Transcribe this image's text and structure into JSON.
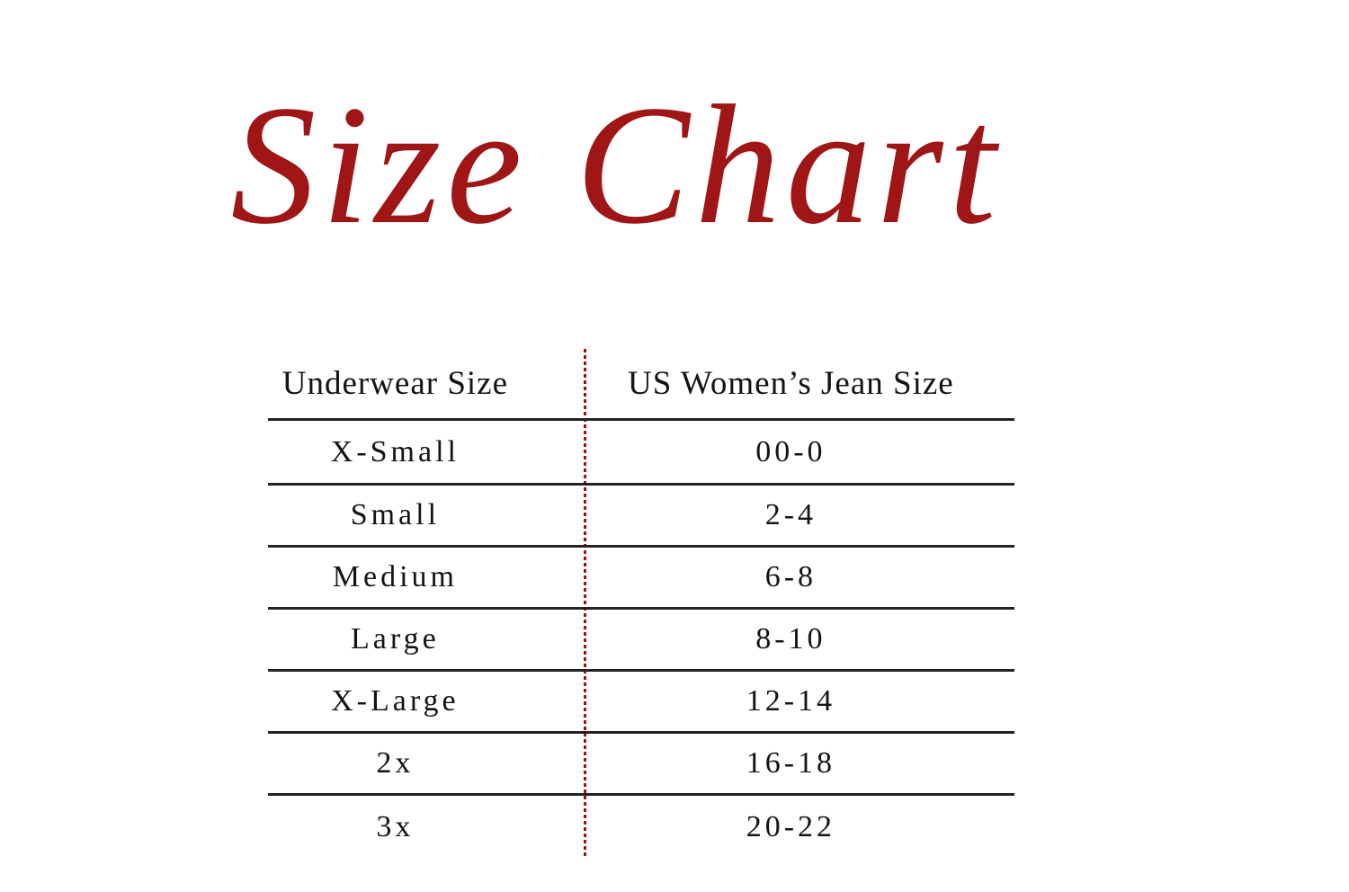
{
  "title": {
    "text": "Size Chart"
  },
  "colors": {
    "accent": "#A01515",
    "divider": "#9B1414",
    "rule": "#262223",
    "text": "#141414",
    "background": "#ffffff"
  },
  "table": {
    "columns": [
      "Underwear Size",
      "US Women’s Jean Size"
    ],
    "rows": [
      {
        "underwear_size": "X-Small",
        "jean_size": "00-0"
      },
      {
        "underwear_size": "Small",
        "jean_size": "2-4"
      },
      {
        "underwear_size": "Medium",
        "jean_size": "6-8"
      },
      {
        "underwear_size": "Large",
        "jean_size": "8-10"
      },
      {
        "underwear_size": "X-Large",
        "jean_size": "12-14"
      },
      {
        "underwear_size": "2x",
        "jean_size": "16-18"
      },
      {
        "underwear_size": "3x",
        "jean_size": "20-22"
      }
    ]
  },
  "chart_data": {
    "type": "table",
    "title": "Size Chart",
    "columns": [
      "Underwear Size",
      "US Women’s Jean Size"
    ],
    "rows": [
      [
        "X-Small",
        "00-0"
      ],
      [
        "Small",
        "2-4"
      ],
      [
        "Medium",
        "6-8"
      ],
      [
        "Large",
        "8-10"
      ],
      [
        "X-Large",
        "12-14"
      ],
      [
        "2x",
        "16-18"
      ],
      [
        "3x",
        "20-22"
      ]
    ]
  }
}
